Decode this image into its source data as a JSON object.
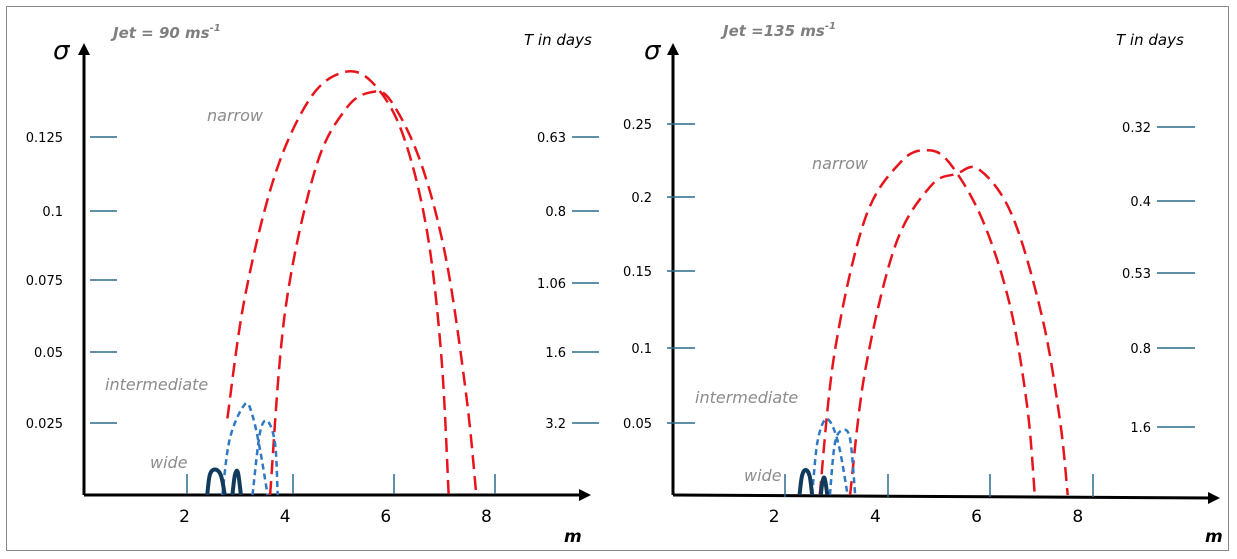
{
  "chart_data": [
    {
      "type": "line",
      "title": "Jet = 90 ms",
      "title_sup": "-1",
      "ylabel": "σ",
      "y2label": "T in days",
      "xlabel": "m",
      "xticks": [
        2,
        4,
        6,
        8
      ],
      "yticks": [
        "0.025",
        "0.05",
        "0.075",
        "0.1",
        "0.125"
      ],
      "y2ticks": [
        "3.2",
        "1.6",
        "1.06",
        "0.8",
        "0.63"
      ],
      "xlim": [
        0,
        9.3
      ],
      "ylim": [
        0,
        0.152
      ],
      "series": [
        {
          "name": "narrow",
          "color": "#e8141c",
          "dash": "long",
          "x": [
            2.85,
            3.2,
            3.8,
            4.5,
            5.15,
            5.7,
            6.3,
            6.8,
            7.1,
            7.25
          ],
          "y": [
            0.027,
            0.07,
            0.113,
            0.14,
            0.149,
            0.146,
            0.129,
            0.095,
            0.05,
            0.0
          ]
        },
        {
          "name": "",
          "color": "#e8141c",
          "dash": "long",
          "x": [
            3.7,
            4.0,
            4.6,
            5.2,
            5.7,
            6.1,
            6.7,
            7.2,
            7.6,
            7.8
          ],
          "y": [
            0.0,
            0.065,
            0.115,
            0.136,
            0.142,
            0.139,
            0.117,
            0.083,
            0.035,
            0.0
          ]
        },
        {
          "name": "intermediate",
          "color": "#2f78c4",
          "dash": "short",
          "x": [
            2.75,
            2.9,
            3.2,
            3.35,
            3.5,
            3.65
          ],
          "y": [
            0.0,
            0.02,
            0.032,
            0.028,
            0.016,
            0.0
          ]
        },
        {
          "name": "",
          "color": "#2f78c4",
          "dash": "short",
          "x": [
            3.35,
            3.5,
            3.65,
            3.8,
            3.85
          ],
          "y": [
            0.0,
            0.022,
            0.026,
            0.018,
            0.0
          ]
        },
        {
          "name": "wide",
          "color": "#123a5c",
          "dash": "solid",
          "x": [
            2.45,
            2.5,
            2.6,
            2.72,
            2.8
          ],
          "y": [
            0.0,
            0.007,
            0.009,
            0.007,
            0.0
          ]
        },
        {
          "name": "",
          "color": "#123a5c",
          "dash": "solid",
          "x": [
            2.95,
            3.0,
            3.06,
            3.12
          ],
          "y": [
            0.0,
            0.007,
            0.008,
            0.0
          ]
        }
      ]
    },
    {
      "type": "line",
      "title": "Jet =135 ms",
      "title_sup": "-1",
      "ylabel": "σ",
      "y2label": "T in days",
      "xlabel": "m",
      "xticks": [
        2,
        4,
        6,
        8
      ],
      "yticks": [
        "0.05",
        "0.1",
        "0.15",
        "0.2",
        "0.25"
      ],
      "y2ticks": [
        "1.6",
        "0.8",
        "0.53",
        "0.4",
        "0.32"
      ],
      "xlim": [
        0,
        9.8
      ],
      "ylim": [
        0,
        0.3
      ],
      "series": [
        {
          "name": "narrow",
          "color": "#e8141c",
          "dash": "long",
          "x": [
            2.9,
            3.2,
            3.8,
            4.5,
            5.0,
            5.45,
            6.1,
            6.65,
            7.0,
            7.15
          ],
          "y": [
            0.0,
            0.098,
            0.188,
            0.226,
            0.234,
            0.226,
            0.188,
            0.13,
            0.06,
            0.0
          ]
        },
        {
          "name": "",
          "color": "#e8141c",
          "dash": "long",
          "x": [
            3.5,
            3.8,
            4.4,
            5.1,
            5.6,
            6.05,
            6.7,
            7.3,
            7.65,
            7.8
          ],
          "y": [
            0.0,
            0.085,
            0.17,
            0.21,
            0.218,
            0.221,
            0.19,
            0.12,
            0.05,
            0.0
          ]
        },
        {
          "name": "intermediate",
          "color": "#2f78c4",
          "dash": "short",
          "x": [
            2.75,
            2.85,
            3.0,
            3.15,
            3.3,
            3.45
          ],
          "y": [
            0.0,
            0.035,
            0.051,
            0.047,
            0.03,
            0.0
          ]
        },
        {
          "name": "",
          "color": "#2f78c4",
          "dash": "short",
          "x": [
            3.1,
            3.2,
            3.35,
            3.5,
            3.6
          ],
          "y": [
            0.0,
            0.035,
            0.044,
            0.038,
            0.0
          ]
        },
        {
          "name": "wide",
          "color": "#123a5c",
          "dash": "solid",
          "x": [
            2.5,
            2.55,
            2.62,
            2.7,
            2.75
          ],
          "y": [
            0.0,
            0.013,
            0.017,
            0.013,
            0.0
          ]
        },
        {
          "name": "",
          "color": "#123a5c",
          "dash": "solid",
          "x": [
            2.92,
            2.96,
            3.0,
            3.05
          ],
          "y": [
            0.0,
            0.01,
            0.011,
            0.0
          ]
        }
      ]
    }
  ]
}
